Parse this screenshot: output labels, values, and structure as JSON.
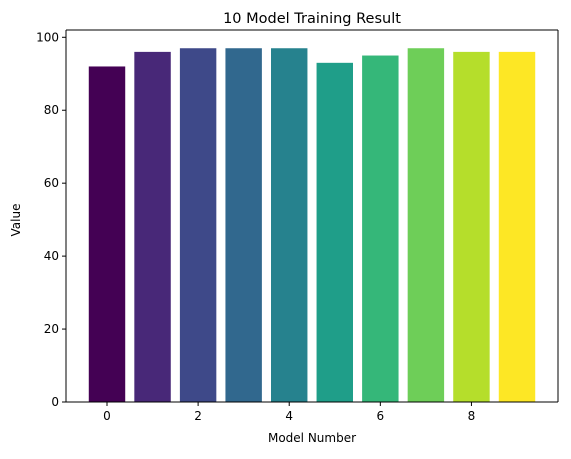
{
  "chart_data": {
    "type": "bar",
    "title": "10 Model Training Result",
    "xlabel": "Model Number",
    "ylabel": "Value",
    "categories": [
      0,
      1,
      2,
      3,
      4,
      5,
      6,
      7,
      8,
      9
    ],
    "values": [
      92,
      96,
      97,
      97,
      97,
      93,
      95,
      97,
      96,
      96
    ],
    "colors": [
      "#440154",
      "#482878",
      "#3e4989",
      "#31688e",
      "#26828e",
      "#1f9e89",
      "#35b779",
      "#6ece58",
      "#b5de2b",
      "#fde725"
    ],
    "x_ticks": [
      0,
      2,
      4,
      6,
      8
    ],
    "y_ticks": [
      0,
      20,
      40,
      60,
      80,
      100
    ],
    "xlim": [
      -0.9,
      9.9
    ],
    "ylim": [
      0,
      102
    ],
    "grid": false,
    "legend": "none"
  }
}
